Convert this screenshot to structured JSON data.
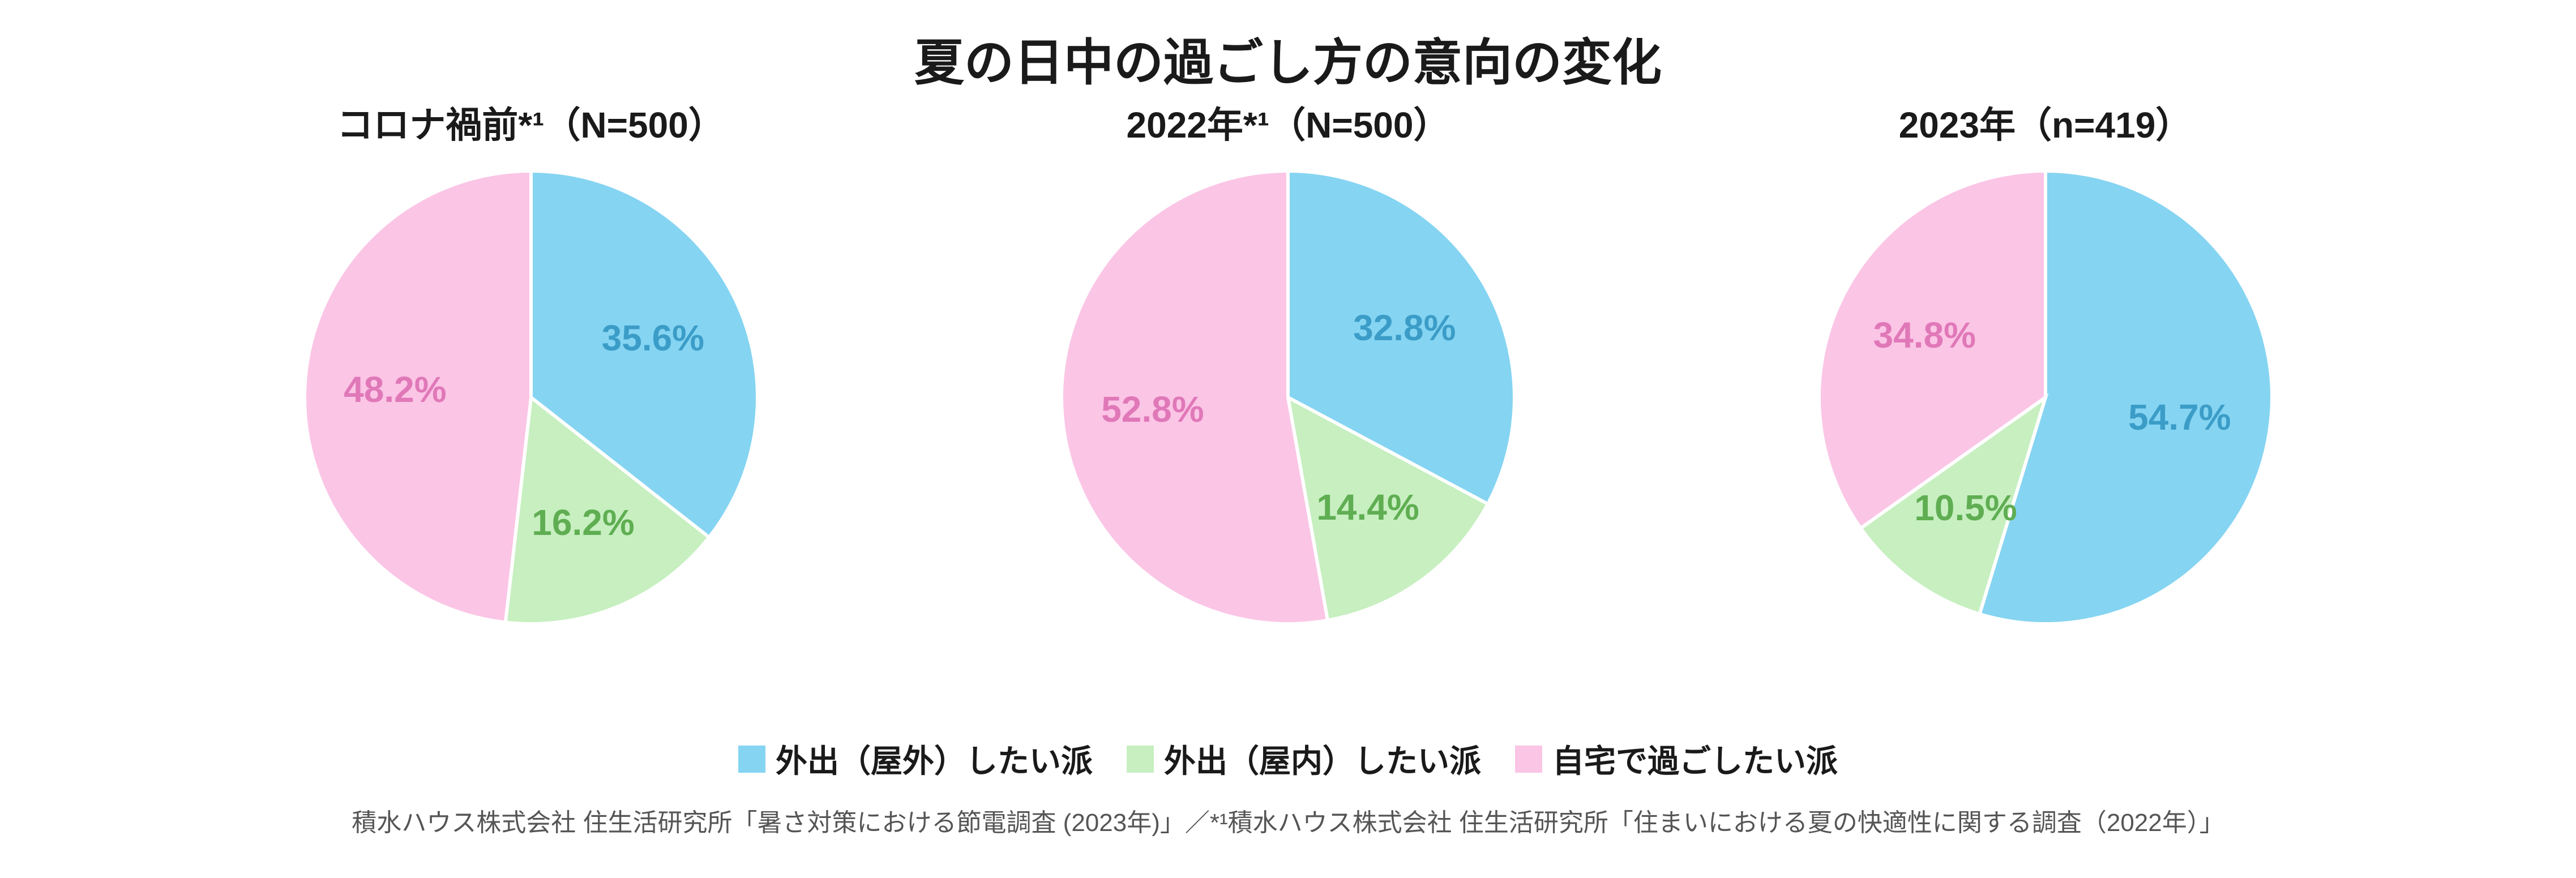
{
  "title": "夏の日中の過ごし方の意向の変化",
  "title_fontsize": 88,
  "title_color": "#1a1a1a",
  "background_color": "#ffffff",
  "pie_diameter": 800,
  "pie_stroke": "#ffffff",
  "pie_stroke_width": 6,
  "subtitle_fontsize": 64,
  "subtitle_color": "#1a1a1a",
  "slice_label_fontsize": 64,
  "legend_fontsize": 56,
  "legend_swatch_size": 48,
  "footnote_fontsize": 44,
  "footnote_color": "#555555",
  "categories": [
    {
      "key": "outdoor",
      "label": "外出（屋外）したい派",
      "color": "#85d4f2"
    },
    {
      "key": "indoor",
      "label": "外出（屋内）したい派",
      "color": "#c7efc0"
    },
    {
      "key": "home",
      "label": "自宅で過ごしたい派",
      "color": "#fbc5e6"
    }
  ],
  "charts": [
    {
      "subtitle": "コロナ禍前*¹（N=500）",
      "slices": [
        {
          "value": 35.6,
          "label": "35.6%",
          "color": "#85d4f2",
          "label_color": "#3b9dc7"
        },
        {
          "value": 16.2,
          "label": "16.2%",
          "color": "#c7efc0",
          "label_color": "#5fae52"
        },
        {
          "value": 48.2,
          "label": "48.2%",
          "color": "#fbc5e6",
          "label_color": "#e078b8"
        }
      ]
    },
    {
      "subtitle": "2022年*¹（N=500）",
      "slices": [
        {
          "value": 32.8,
          "label": "32.8%",
          "color": "#85d4f2",
          "label_color": "#3b9dc7"
        },
        {
          "value": 14.4,
          "label": "14.4%",
          "color": "#c7efc0",
          "label_color": "#5fae52"
        },
        {
          "value": 52.8,
          "label": "52.8%",
          "color": "#fbc5e6",
          "label_color": "#e078b8"
        }
      ]
    },
    {
      "subtitle": "2023年（n=419）",
      "slices": [
        {
          "value": 54.7,
          "label": "54.7%",
          "color": "#85d4f2",
          "label_color": "#3b9dc7"
        },
        {
          "value": 10.5,
          "label": "10.5%",
          "color": "#c7efc0",
          "label_color": "#5fae52"
        },
        {
          "value": 34.8,
          "label": "34.8%",
          "color": "#fbc5e6",
          "label_color": "#e078b8"
        }
      ]
    }
  ],
  "footnote": "積水ハウス株式会社 住生活研究所「暑さ対策における節電調査 (2023年)」／*¹積水ハウス株式会社 住生活研究所「住まいにおける夏の快適性に関する調査（2022年）」"
}
